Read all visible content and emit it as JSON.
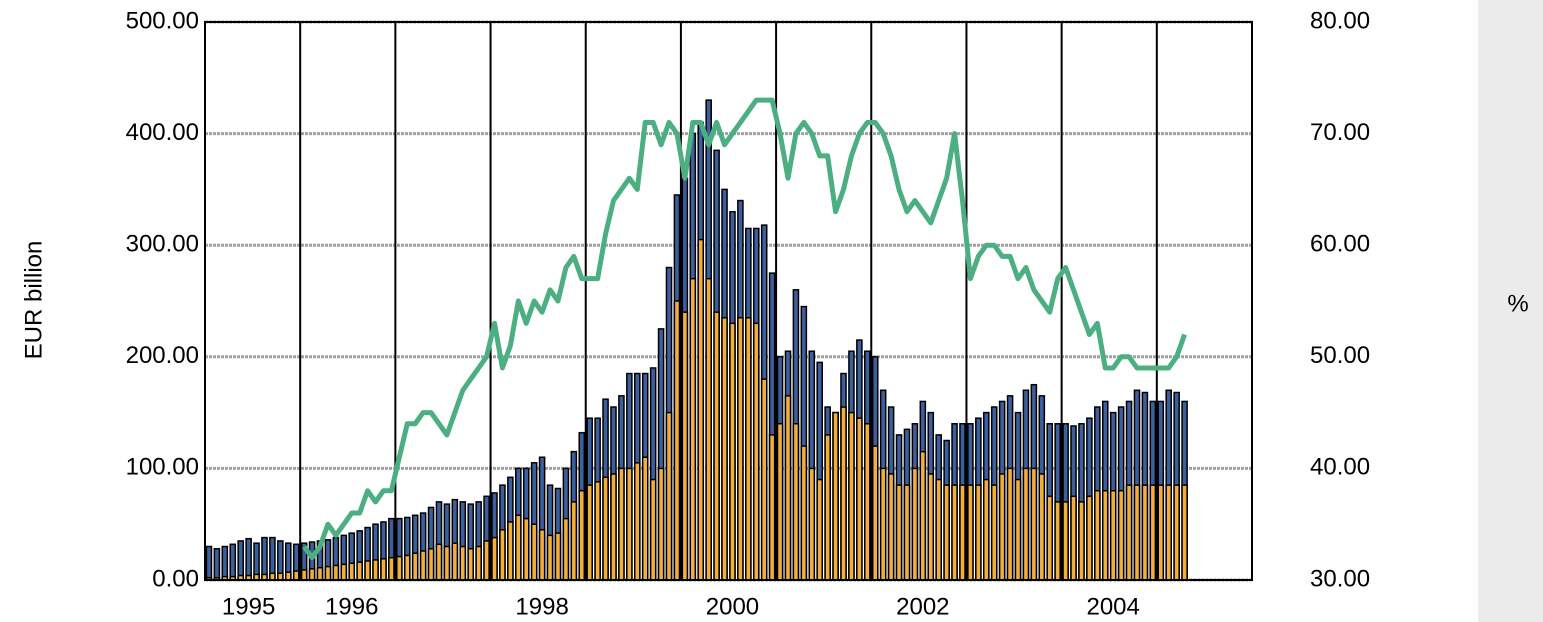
{
  "chart_data": {
    "type": "bar",
    "y_label": "EUR billion",
    "y2_label": "%",
    "categories": [
      null,
      null,
      null,
      null,
      null,
      "1995",
      null,
      null,
      null,
      null,
      null,
      null,
      null,
      null,
      null,
      null,
      null,
      null,
      "1996",
      null,
      null,
      null,
      null,
      null,
      null,
      null,
      null,
      null,
      null,
      null,
      null,
      null,
      null,
      null,
      null,
      null,
      null,
      null,
      null,
      null,
      null,
      null,
      "1998",
      null,
      null,
      null,
      null,
      null,
      null,
      null,
      null,
      null,
      null,
      null,
      null,
      null,
      null,
      null,
      null,
      null,
      null,
      null,
      null,
      null,
      null,
      null,
      "2000",
      null,
      null,
      null,
      null,
      null,
      null,
      null,
      null,
      null,
      null,
      null,
      null,
      null,
      null,
      null,
      null,
      null,
      null,
      null,
      null,
      null,
      null,
      null,
      "2002",
      null,
      null,
      null,
      null,
      null,
      null,
      null,
      null,
      null,
      null,
      null,
      null,
      null,
      null,
      null,
      null,
      null,
      null,
      null,
      null,
      null,
      null,
      null,
      "2004",
      null,
      null,
      null,
      null,
      null,
      null,
      null,
      null,
      null,
      null,
      null,
      null,
      null,
      null,
      null,
      null,
      null
    ],
    "series": [
      {
        "type": "bar",
        "color": "#3d5f9e",
        "values": [
          30,
          28,
          30,
          32,
          35,
          37,
          33,
          38,
          38,
          35,
          33,
          32,
          33,
          34,
          35,
          36,
          38,
          40,
          42,
          44,
          47,
          50,
          52,
          55,
          55,
          56,
          58,
          60,
          65,
          70,
          68,
          72,
          70,
          68,
          70,
          75,
          78,
          85,
          92,
          100,
          100,
          105,
          110,
          85,
          82,
          100,
          115,
          132,
          145,
          145,
          162,
          155,
          165,
          185,
          185,
          185,
          190,
          225,
          280,
          345,
          360,
          400,
          410,
          430,
          385,
          350,
          330,
          340,
          315,
          315,
          318,
          275,
          200,
          205,
          260,
          245,
          205,
          195,
          155,
          150,
          185,
          205,
          215,
          205,
          200,
          170,
          155,
          130,
          135,
          140,
          160,
          150,
          130,
          125,
          140,
          140,
          140,
          145,
          150,
          155,
          160,
          165,
          150,
          170,
          175,
          165,
          140,
          140,
          140,
          138,
          140,
          145,
          155,
          160,
          150,
          155,
          160,
          170,
          168,
          160,
          160,
          170,
          168,
          160,
          null,
          null,
          null,
          null,
          null,
          null,
          null,
          null
        ]
      },
      {
        "type": "bar",
        "color": "#f2ad3c",
        "values": [
          2,
          2,
          3,
          3,
          4,
          4,
          5,
          5,
          6,
          6,
          7,
          8,
          9,
          10,
          11,
          12,
          13,
          14,
          15,
          16,
          17,
          18,
          19,
          20,
          21,
          22,
          24,
          26,
          28,
          32,
          30,
          33,
          30,
          28,
          30,
          35,
          38,
          45,
          52,
          58,
          55,
          50,
          45,
          40,
          42,
          55,
          70,
          80,
          85,
          88,
          92,
          95,
          100,
          100,
          105,
          110,
          90,
          100,
          150,
          250,
          240,
          270,
          305,
          270,
          240,
          235,
          230,
          235,
          235,
          230,
          180,
          130,
          140,
          165,
          140,
          120,
          100,
          90,
          130,
          150,
          155,
          150,
          145,
          140,
          120,
          100,
          95,
          85,
          85,
          100,
          115,
          95,
          90,
          85,
          85,
          85,
          85,
          85,
          90,
          85,
          95,
          100,
          90,
          100,
          100,
          95,
          75,
          70,
          70,
          75,
          70,
          75,
          80,
          80,
          80,
          80,
          85,
          85,
          85,
          85,
          85,
          85,
          85,
          85,
          null,
          null,
          null,
          null,
          null,
          null,
          null,
          null
        ]
      },
      {
        "type": "line",
        "axis": "y2",
        "color": "#4caf82",
        "values": [
          null,
          null,
          null,
          null,
          null,
          null,
          null,
          null,
          null,
          null,
          null,
          null,
          33,
          32,
          33,
          35,
          34,
          35,
          36,
          36,
          38,
          37,
          38,
          38,
          41,
          44,
          44,
          45,
          45,
          44,
          43,
          45,
          47,
          48,
          49,
          50,
          53,
          49,
          51,
          55,
          53,
          55,
          54,
          56,
          55,
          58,
          59,
          57,
          57,
          57,
          61,
          64,
          65,
          66,
          65,
          71,
          71,
          69,
          71,
          70,
          66,
          71,
          71,
          69,
          71,
          69,
          70,
          71,
          72,
          73,
          73,
          73,
          70,
          66,
          70,
          71,
          70,
          68,
          68,
          63,
          65,
          68,
          70,
          71,
          71,
          70,
          68,
          65,
          63,
          64,
          63,
          62,
          64,
          66,
          70,
          64,
          57,
          59,
          60,
          60,
          59,
          59,
          57,
          58,
          56,
          55,
          54,
          57,
          58,
          56,
          54,
          52,
          53,
          49,
          49,
          50,
          50,
          49,
          49,
          49,
          49,
          49,
          50,
          52,
          null,
          null,
          null,
          null,
          null,
          null,
          null,
          null
        ]
      }
    ],
    "ylim": [
      0,
      500
    ],
    "yticks": [
      {
        "value": 0,
        "label": "0.00"
      },
      {
        "value": 100,
        "label": "100.00"
      },
      {
        "value": 200,
        "label": "200.00"
      },
      {
        "value": 300,
        "label": "300.00"
      },
      {
        "value": 400,
        "label": "400.00"
      },
      {
        "value": 500,
        "label": "500.00"
      }
    ],
    "y2lim": [
      30,
      80
    ],
    "y2ticks": [
      {
        "value": 30,
        "label": "30.00"
      },
      {
        "value": 40,
        "label": "40.00"
      },
      {
        "value": 50,
        "label": "50.00"
      },
      {
        "value": 60,
        "label": "60.00"
      },
      {
        "value": 70,
        "label": "70.00"
      },
      {
        "value": 80,
        "label": "80.00"
      }
    ],
    "grid": true
  }
}
